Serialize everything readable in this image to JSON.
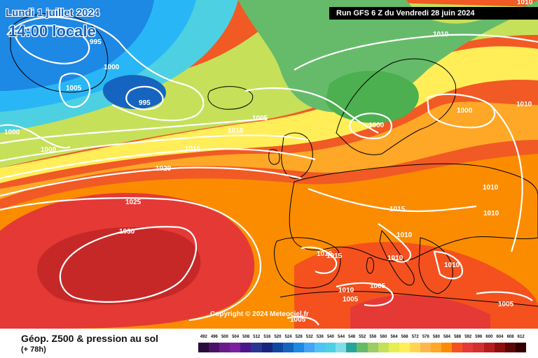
{
  "header": {
    "date_text": "Lundi 1 juillet 2024",
    "time_text": "14:00 locale",
    "run_text": "Run GFS 6 Z du Vendredi 28 juin 2024"
  },
  "copyright": "Copyright © 2024 Meteociel.fr",
  "footer": {
    "title": "Géop. Z500 & pression au sol",
    "lead_time": "(+ 78h)"
  },
  "isobar_labels": [
    "995",
    "1000",
    "1005",
    "1000",
    "1005",
    "995",
    "1000",
    "1010",
    "1015",
    "1020",
    "1025",
    "1030",
    "1010",
    "1000",
    "1000",
    "1010",
    "1010",
    "1010",
    "1015",
    "1010",
    "1010",
    "1010",
    "1015",
    "1010",
    "1010",
    "1005",
    "1005",
    "1005",
    "1005",
    "1010"
  ],
  "color_scale": {
    "labels": [
      "492",
      "496",
      "500",
      "504",
      "508",
      "512",
      "516",
      "520",
      "524",
      "528",
      "532",
      "536",
      "540",
      "544",
      "548",
      "552",
      "556",
      "560",
      "564",
      "568",
      "572",
      "576",
      "580",
      "584",
      "588",
      "592",
      "596",
      "600",
      "604",
      "608",
      "612"
    ],
    "colors": [
      "#2b0a3d",
      "#4a1366",
      "#6a1b8a",
      "#7b1fa2",
      "#4a148c",
      "#283593",
      "#1a237e",
      "#0d47a1",
      "#1565c0",
      "#1e88e5",
      "#42a5f5",
      "#4fc3f7",
      "#4dd0e1",
      "#80deea",
      "#26a69a",
      "#66bb6a",
      "#9ccc65",
      "#c6e05a",
      "#e6ee50",
      "#ffee58",
      "#ffd54f",
      "#ffb74d",
      "#ffa726",
      "#fb8c00",
      "#f4511e",
      "#e53935",
      "#d32f2f",
      "#b71c1c",
      "#8e0e0e",
      "#5d0606",
      "#330000"
    ]
  }
}
